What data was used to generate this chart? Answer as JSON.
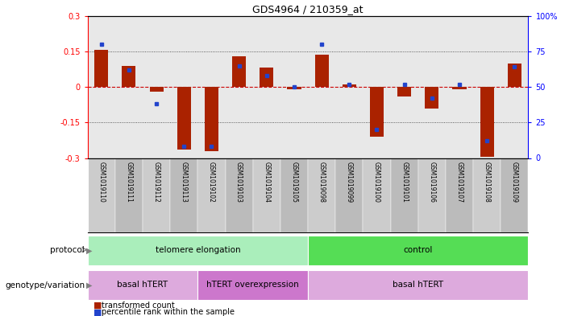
{
  "title": "GDS4964 / 210359_at",
  "samples": [
    "GSM1019110",
    "GSM1019111",
    "GSM1019112",
    "GSM1019113",
    "GSM1019102",
    "GSM1019103",
    "GSM1019104",
    "GSM1019105",
    "GSM1019098",
    "GSM1019099",
    "GSM1019100",
    "GSM1019101",
    "GSM1019106",
    "GSM1019107",
    "GSM1019108",
    "GSM1019109"
  ],
  "red_values": [
    0.155,
    0.09,
    -0.02,
    -0.265,
    -0.27,
    0.13,
    0.08,
    -0.01,
    0.135,
    0.01,
    -0.21,
    -0.04,
    -0.09,
    -0.01,
    -0.295,
    0.1
  ],
  "blue_values": [
    80,
    62,
    38,
    8,
    8,
    65,
    58,
    50,
    80,
    52,
    20,
    52,
    42,
    52,
    12,
    64
  ],
  "ylim_left": [
    -0.3,
    0.3
  ],
  "ylim_right": [
    0,
    100
  ],
  "yticks_left": [
    -0.3,
    -0.15,
    0.0,
    0.15,
    0.3
  ],
  "yticks_left_labels": [
    "-0.3",
    "-0.15",
    "0",
    "0.15",
    "0.3"
  ],
  "yticks_right": [
    0,
    25,
    50,
    75,
    100
  ],
  "yticks_right_labels": [
    "0",
    "25",
    "50",
    "75",
    "100%"
  ],
  "hline_zero_color": "#cc0000",
  "hline_dotted_color": "#333333",
  "bar_red_color": "#aa2200",
  "bar_blue_color": "#2244cc",
  "bar_width": 0.5,
  "protocol_groups": [
    {
      "label": "telomere elongation",
      "start": 0,
      "end": 7,
      "color": "#aaeebb"
    },
    {
      "label": "control",
      "start": 8,
      "end": 15,
      "color": "#55dd55"
    }
  ],
  "genotype_groups": [
    {
      "label": "basal hTERT",
      "start": 0,
      "end": 3,
      "color": "#ddaadd"
    },
    {
      "label": "hTERT overexpression",
      "start": 4,
      "end": 7,
      "color": "#cc77cc"
    },
    {
      "label": "basal hTERT",
      "start": 8,
      "end": 15,
      "color": "#ddaadd"
    }
  ],
  "legend_red": "transformed count",
  "legend_blue": "percentile rank within the sample",
  "label_protocol": "protocol",
  "label_genotype": "genotype/variation",
  "bg_color": "#ffffff",
  "plot_bg_color": "#e8e8e8",
  "tick_label_bg": "#cccccc",
  "tick_label_bg_alt": "#bbbbbb"
}
